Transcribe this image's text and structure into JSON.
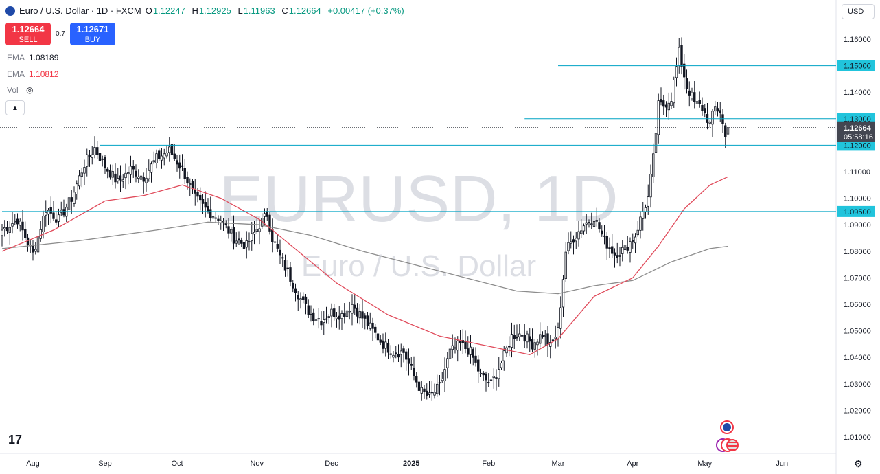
{
  "header": {
    "title": "Euro / U.S. Dollar · 1D · FXCM",
    "open_label": "O",
    "open": "1.12247",
    "high_label": "H",
    "high": "1.12925",
    "low_label": "L",
    "low": "1.11963",
    "close_label": "C",
    "close": "1.12664",
    "change": "+0.00417 (+0.37%)"
  },
  "trade": {
    "sell_price": "1.12664",
    "sell_label": "SELL",
    "spread": "0.7",
    "buy_price": "1.12671",
    "buy_label": "BUY"
  },
  "indicators": [
    {
      "name": "EMA",
      "value": "1.08189"
    },
    {
      "name": "EMA",
      "value": "1.10812"
    },
    {
      "name": "Vol"
    }
  ],
  "currency": "USD",
  "watermark": {
    "symbol": "EURUSD, 1D",
    "name": "Euro / U.S. Dollar"
  },
  "countdown": "05:58:16",
  "colors": {
    "up": "#089981",
    "down": "#131722",
    "ema_fast": "#e04a5a",
    "ema_slow": "#8c8c8c",
    "hline": "#00a3c4",
    "label_bg": "#21c4dc",
    "price_bg": "#434651"
  },
  "chart_data": {
    "type": "candlestick",
    "symbol": "EURUSD",
    "timeframe": "1D",
    "ylim": [
      1.0,
      1.165
    ],
    "y_ticks": [
      "1.01000",
      "1.02000",
      "1.03000",
      "1.04000",
      "1.05000",
      "1.06000",
      "1.07000",
      "1.08000",
      "1.09000",
      "1.10000",
      "1.11000",
      "1.12000",
      "1.13000",
      "1.14000",
      "1.15000",
      "1.16000"
    ],
    "x_labels": [
      "Aug",
      "Sep",
      "Oct",
      "Nov",
      "Dec",
      "2025",
      "Feb",
      "Mar",
      "Apr",
      "May",
      "Jun"
    ],
    "x_label_index": [
      12,
      40,
      68,
      99,
      128,
      159,
      189,
      216,
      245,
      273,
      303
    ],
    "series_close_path": [
      [
        0,
        1.088
      ],
      [
        6,
        1.092
      ],
      [
        12,
        1.079
      ],
      [
        17,
        1.096
      ],
      [
        22,
        1.092
      ],
      [
        27,
        1.1
      ],
      [
        32,
        1.113
      ],
      [
        36,
        1.119
      ],
      [
        40,
        1.112
      ],
      [
        45,
        1.106
      ],
      [
        50,
        1.111
      ],
      [
        55,
        1.108
      ],
      [
        60,
        1.115
      ],
      [
        65,
        1.118
      ],
      [
        70,
        1.111
      ],
      [
        75,
        1.1
      ],
      [
        80,
        1.095
      ],
      [
        85,
        1.092
      ],
      [
        90,
        1.085
      ],
      [
        95,
        1.082
      ],
      [
        100,
        1.09
      ],
      [
        103,
        1.094
      ],
      [
        105,
        1.085
      ],
      [
        108,
        1.078
      ],
      [
        112,
        1.07
      ],
      [
        116,
        1.062
      ],
      [
        120,
        1.056
      ],
      [
        124,
        1.054
      ],
      [
        128,
        1.057
      ],
      [
        132,
        1.056
      ],
      [
        136,
        1.06
      ],
      [
        140,
        1.055
      ],
      [
        144,
        1.05
      ],
      [
        148,
        1.045
      ],
      [
        152,
        1.042
      ],
      [
        156,
        1.042
      ],
      [
        160,
        1.033
      ],
      [
        163,
        1.027
      ],
      [
        166,
        1.025
      ],
      [
        170,
        1.029
      ],
      [
        174,
        1.042
      ],
      [
        178,
        1.045
      ],
      [
        182,
        1.042
      ],
      [
        186,
        1.033
      ],
      [
        190,
        1.03
      ],
      [
        194,
        1.038
      ],
      [
        198,
        1.048
      ],
      [
        202,
        1.049
      ],
      [
        206,
        1.045
      ],
      [
        210,
        1.049
      ],
      [
        213,
        1.044
      ],
      [
        216,
        1.05
      ],
      [
        219,
        1.08
      ],
      [
        222,
        1.085
      ],
      [
        226,
        1.09
      ],
      [
        230,
        1.093
      ],
      [
        234,
        1.084
      ],
      [
        238,
        1.079
      ],
      [
        242,
        1.081
      ],
      [
        246,
        1.086
      ],
      [
        249,
        1.095
      ],
      [
        251,
        1.1
      ],
      [
        253,
        1.115
      ],
      [
        255,
        1.135
      ],
      [
        257,
        1.135
      ],
      [
        260,
        1.138
      ],
      [
        263,
        1.155
      ],
      [
        266,
        1.142
      ],
      [
        269,
        1.136
      ],
      [
        272,
        1.134
      ],
      [
        275,
        1.128
      ],
      [
        277,
        1.134
      ],
      [
        279,
        1.133
      ],
      [
        281,
        1.123
      ],
      [
        282,
        1.1266
      ]
    ],
    "ema_fast": [
      [
        0,
        1.08
      ],
      [
        20,
        1.088
      ],
      [
        40,
        1.099
      ],
      [
        55,
        1.101
      ],
      [
        70,
        1.105
      ],
      [
        85,
        1.1
      ],
      [
        100,
        1.092
      ],
      [
        115,
        1.08
      ],
      [
        130,
        1.068
      ],
      [
        150,
        1.056
      ],
      [
        170,
        1.048
      ],
      [
        190,
        1.044
      ],
      [
        205,
        1.041
      ],
      [
        216,
        1.047
      ],
      [
        230,
        1.063
      ],
      [
        245,
        1.07
      ],
      [
        255,
        1.082
      ],
      [
        265,
        1.096
      ],
      [
        275,
        1.105
      ],
      [
        282,
        1.1081
      ]
    ],
    "ema_slow": [
      [
        0,
        1.081
      ],
      [
        30,
        1.084
      ],
      [
        60,
        1.088
      ],
      [
        80,
        1.091
      ],
      [
        100,
        1.09
      ],
      [
        120,
        1.086
      ],
      [
        140,
        1.08
      ],
      [
        160,
        1.075
      ],
      [
        180,
        1.07
      ],
      [
        200,
        1.065
      ],
      [
        216,
        1.064
      ],
      [
        230,
        1.067
      ],
      [
        245,
        1.069
      ],
      [
        260,
        1.076
      ],
      [
        275,
        1.081
      ],
      [
        282,
        1.0819
      ]
    ],
    "horizontal_levels": [
      {
        "price": 1.15,
        "label": "1.15000",
        "start_index": 216
      },
      {
        "price": 1.13,
        "label": "1.13000",
        "start_index": 203
      },
      {
        "price": 1.12,
        "label": "1.12000",
        "start_index": 38
      },
      {
        "price": 1.095,
        "label": "1.09500",
        "start_index": 0
      }
    ],
    "last_price": {
      "price": 1.12664,
      "label": "1.12664"
    },
    "legend": "top-left"
  }
}
